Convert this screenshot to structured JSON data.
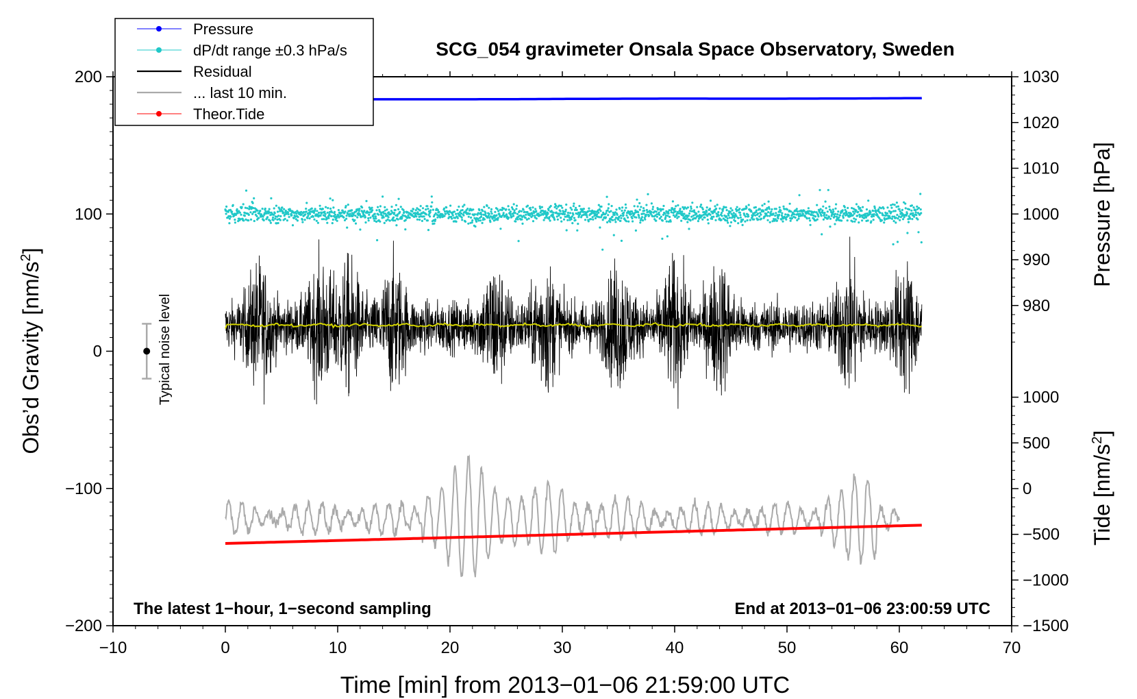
{
  "chart_data": {
    "type": "line",
    "title": "SCG_054 gravimeter Onsala Space Observatory, Sweden",
    "xlabel": "Time [min] from 2013−01−06 21:59:00 UTC",
    "ylabel_left": "Obs’d Gravity [nm/s²]",
    "ylabel_left_main": "Obs’d Gravity [nm/s",
    "ylabel_left_sup": "2",
    "ylabel_left_end": "]",
    "ylabel_pressure": "Pressure [hPa]",
    "ylabel_tide": "Tide [nm/s²]",
    "ylabel_tide_main": "Tide [nm/s",
    "ylabel_tide_sup": "2",
    "ylabel_tide_end": "]",
    "xlim": [
      -10,
      70
    ],
    "ylim": [
      -200,
      200
    ],
    "x_ticks": [
      "−10",
      "0",
      "10",
      "20",
      "30",
      "40",
      "50",
      "60",
      "70"
    ],
    "y_ticks_left": [
      "200",
      "100",
      "0",
      "−100",
      "−200"
    ],
    "pressure_ticks": [
      "1030",
      "1020",
      "1010",
      "1000",
      "990",
      "980"
    ],
    "pressure_range": [
      970,
      1030
    ],
    "tide_ticks": [
      "1000",
      "500",
      "0",
      "−500",
      "−1000",
      "−1500"
    ],
    "tide_range": [
      -1500,
      1000
    ],
    "annotation_left": "The latest 1−hour, 1−second sampling",
    "annotation_right": "End at 2013−01−06 23:00:59 UTC",
    "noise_label": "Typical noise level",
    "noise_bar": {
      "x": -7,
      "center": 0,
      "halfwidth": 20
    },
    "legend": [
      "Pressure",
      "dP/dt range ±0.3 hPa/s",
      "Residual",
      "... last 10 min.",
      "Theor.Tide"
    ],
    "series": [
      {
        "name": "Pressure",
        "axis": "pressure",
        "color": "#0000ff",
        "x": [
          0,
          62
        ],
        "values": [
          1025.0,
          1025.3
        ]
      },
      {
        "name": "dP/dt range ±0.3 hPa/s",
        "axis": "left",
        "color": "#20c8c8",
        "center": 100,
        "spread": 3,
        "x_range": [
          0,
          62
        ]
      },
      {
        "name": "Residual",
        "axis": "left",
        "color": "#000000",
        "center": 18,
        "spread": 20,
        "x_range": [
          0,
          62
        ]
      },
      {
        "name": "Residual running mean",
        "axis": "left",
        "color": "#d4d400",
        "center": 19,
        "x_range": [
          0,
          62
        ]
      },
      {
        "name": "... last 10 min.",
        "axis": "left",
        "color": "#aaaaaa",
        "center": -122,
        "spread": 17,
        "x_range": [
          0,
          60
        ]
      },
      {
        "name": "Theor.Tide",
        "axis": "tide",
        "color": "#ff0000",
        "x": [
          0,
          62
        ],
        "values": [
          -600,
          -400
        ]
      }
    ],
    "colors": {
      "pressure": "#0000ff",
      "dpdt": "#20c8c8",
      "residual": "#000000",
      "mean": "#d4d400",
      "last10": "#aaaaaa",
      "tide": "#ff0000"
    }
  }
}
